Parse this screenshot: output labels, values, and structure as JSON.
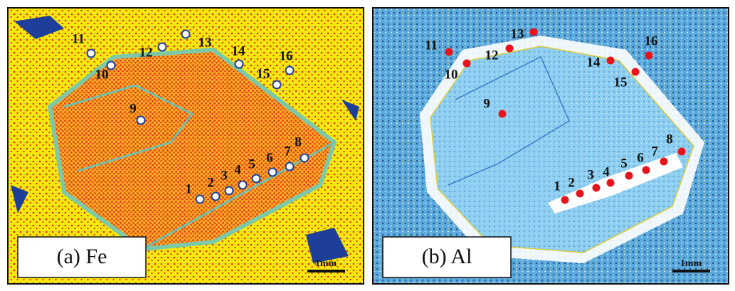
{
  "panels": [
    {
      "label": "(a) Fe",
      "scale": "1mm",
      "points": [
        "1",
        "2",
        "3",
        "4",
        "5",
        "6",
        "7",
        "8",
        "9",
        "10",
        "11",
        "12",
        "13",
        "14",
        "15",
        "16"
      ]
    },
    {
      "label": "(b) Al",
      "scale": "1mm",
      "points": [
        "1",
        "2",
        "3",
        "4",
        "5",
        "6",
        "7",
        "8",
        "9",
        "10",
        "11",
        "12",
        "13",
        "14",
        "15",
        "16"
      ]
    }
  ]
}
